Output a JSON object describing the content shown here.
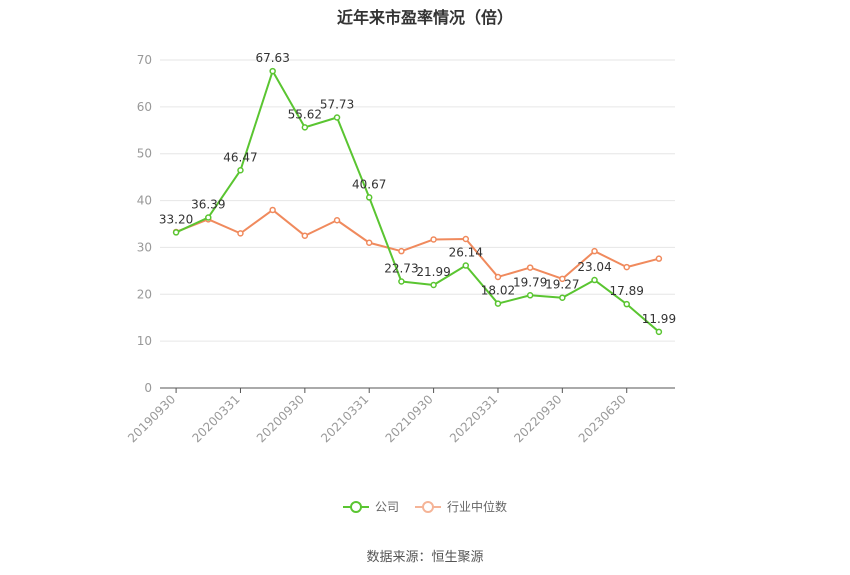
{
  "title": "近年来市盈率情况（倍）",
  "source": "数据来源：恒生聚源",
  "colors": {
    "company": "#5ac531",
    "industry": "#f08a5d",
    "grid": "#e6e6e6",
    "axis": "#555555",
    "tick_text": "#999999",
    "label_text": "#333333"
  },
  "legend": {
    "company": "公司",
    "industry": "行业中位数"
  },
  "chart_data": {
    "type": "line",
    "title": "近年来市盈率情况（倍）",
    "x_tick_labels": [
      "20190930",
      "20200331",
      "20200930",
      "20210331",
      "20210930",
      "20220331",
      "20220930",
      "20230630"
    ],
    "y_ticks": [
      0,
      10,
      20,
      30,
      40,
      50,
      60,
      70
    ],
    "ylim": [
      0,
      70
    ],
    "grid": true,
    "legend_position": "bottom",
    "series": [
      {
        "name": "公司",
        "values": [
          33.2,
          36.39,
          46.47,
          67.63,
          55.62,
          57.73,
          40.67,
          22.73,
          21.99,
          26.14,
          18.02,
          19.79,
          19.27,
          23.04,
          17.89,
          11.99
        ],
        "labels": [
          "33.20",
          "36.39",
          "46.47",
          "67.63",
          "55.62",
          "57.73",
          "40.67",
          "22.73",
          "21.99",
          "26.14",
          "18.02",
          "19.79",
          "19.27",
          "23.04",
          "17.89",
          "11.99"
        ]
      },
      {
        "name": "行业中位数",
        "values": [
          33.3,
          36.0,
          33.0,
          38.0,
          32.5,
          35.8,
          31.0,
          29.2,
          31.7,
          31.8,
          23.7,
          25.7,
          23.3,
          29.2,
          25.8,
          27.6
        ]
      }
    ]
  }
}
